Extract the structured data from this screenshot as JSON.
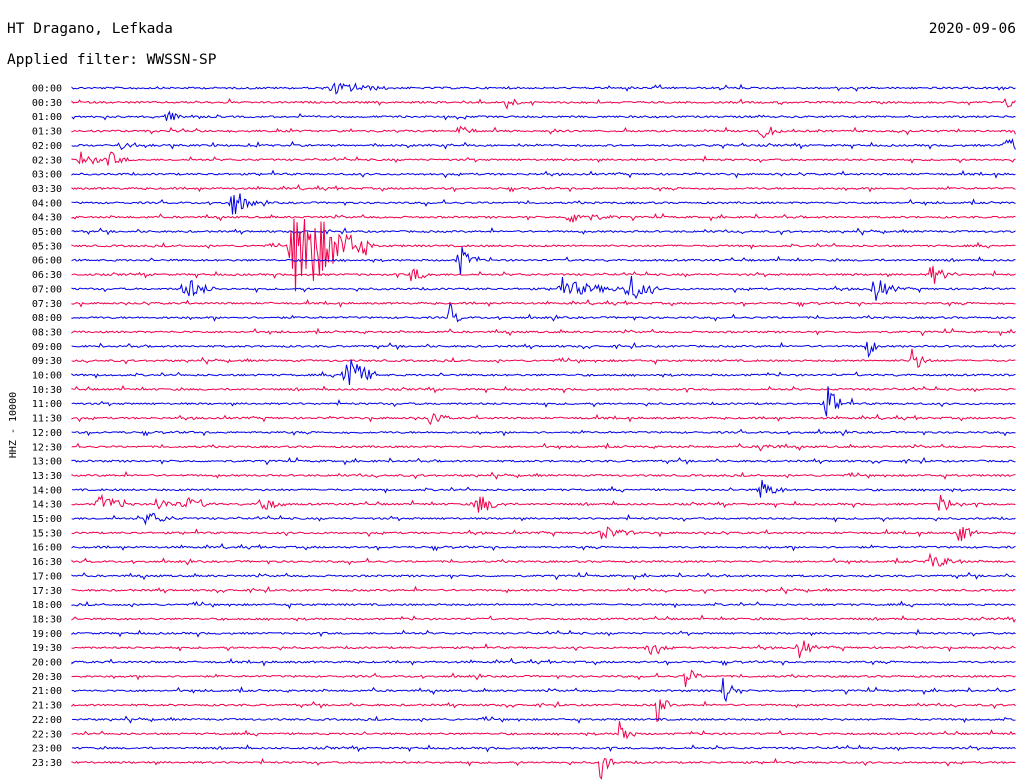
{
  "header": {
    "station": "HT Dragano, Lefkada",
    "date": "2020-09-06",
    "filter": "Applied filter: WWSSN-SP"
  },
  "chart_data": {
    "type": "line",
    "title": "HT Dragano, Lefkada",
    "subtitle": "Applied filter: WWSSN-SP",
    "date": "2020-09-06",
    "ylabel": "HHZ - 10000",
    "rows": [
      "00:00",
      "00:30",
      "01:00",
      "01:30",
      "02:00",
      "02:30",
      "03:00",
      "03:30",
      "04:00",
      "04:30",
      "05:00",
      "05:30",
      "06:00",
      "06:30",
      "07:00",
      "07:30",
      "08:00",
      "08:30",
      "09:00",
      "09:30",
      "10:00",
      "10:30",
      "11:00",
      "11:30",
      "12:00",
      "12:30",
      "13:00",
      "13:30",
      "14:00",
      "14:30",
      "15:00",
      "15:30",
      "16:00",
      "16:30",
      "17:00",
      "17:30",
      "18:00",
      "18:30",
      "19:00",
      "19:30",
      "20:00",
      "20:30",
      "21:00",
      "21:30",
      "22:00",
      "22:30",
      "23:00",
      "23:30"
    ],
    "series_colors": [
      "#0000e6",
      "#f0004a"
    ],
    "grid": false
  }
}
